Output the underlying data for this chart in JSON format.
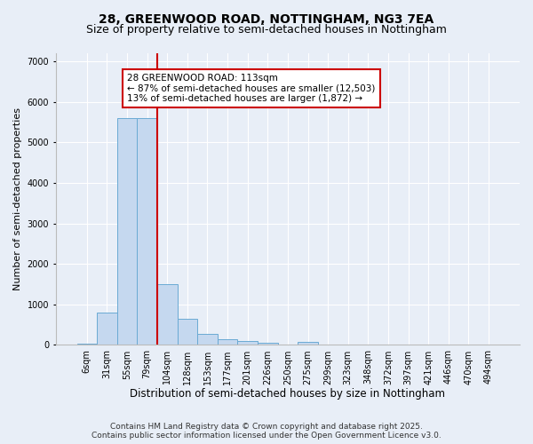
{
  "title_line1": "28, GREENWOOD ROAD, NOTTINGHAM, NG3 7EA",
  "title_line2": "Size of property relative to semi-detached houses in Nottingham",
  "xlabel": "Distribution of semi-detached houses by size in Nottingham",
  "ylabel": "Number of semi-detached properties",
  "categories": [
    "6sqm",
    "31sqm",
    "55sqm",
    "79sqm",
    "104sqm",
    "128sqm",
    "153sqm",
    "177sqm",
    "201sqm",
    "226sqm",
    "250sqm",
    "275sqm",
    "299sqm",
    "323sqm",
    "348sqm",
    "372sqm",
    "397sqm",
    "421sqm",
    "446sqm",
    "470sqm",
    "494sqm"
  ],
  "values": [
    30,
    800,
    5600,
    5600,
    1500,
    650,
    280,
    140,
    100,
    60,
    0,
    70,
    0,
    0,
    0,
    0,
    0,
    0,
    0,
    0,
    0
  ],
  "bar_color": "#c5d8ef",
  "bar_edge_color": "#6aaad4",
  "vline_color": "#cc0000",
  "vline_x_index": 3.5,
  "annotation_text": "28 GREENWOOD ROAD: 113sqm\n← 87% of semi-detached houses are smaller (12,503)\n13% of semi-detached houses are larger (1,872) →",
  "annotation_box_color": "#ffffff",
  "annotation_box_edge": "#cc0000",
  "ylim": [
    0,
    7200
  ],
  "yticks": [
    0,
    1000,
    2000,
    3000,
    4000,
    5000,
    6000,
    7000
  ],
  "background_color": "#e8eef7",
  "footer_line1": "Contains HM Land Registry data © Crown copyright and database right 2025.",
  "footer_line2": "Contains public sector information licensed under the Open Government Licence v3.0.",
  "title_fontsize": 10,
  "subtitle_fontsize": 9,
  "xlabel_fontsize": 8.5,
  "ylabel_fontsize": 8,
  "tick_fontsize": 7,
  "annotation_fontsize": 7.5,
  "footer_fontsize": 6.5
}
